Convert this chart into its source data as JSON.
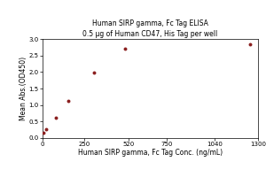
{
  "title_line1": "Human SIRP gamma, Fc Tag ELISA",
  "title_line2": "0.5 μg of Human CD47, His Tag per well",
  "xlabel": "Human SIRP gamma, Fc Tag Conc. (ng/mL)",
  "ylabel": "Mean Abs.(OD450)",
  "x_pts": [
    5,
    20,
    78,
    156,
    312,
    500,
    1250
  ],
  "y_pts": [
    0.15,
    0.27,
    0.62,
    1.12,
    1.97,
    2.7,
    2.85
  ],
  "xlim": [
    0,
    1300
  ],
  "ylim": [
    0.0,
    3.0
  ],
  "xticks": [
    0,
    250,
    520,
    750,
    1040,
    1300
  ],
  "yticks": [
    0.0,
    0.5,
    1.0,
    1.5,
    2.0,
    2.5,
    3.0
  ],
  "line_color": "#8B2020",
  "dot_color": "#8B2020",
  "bg_color": "#FFFFFF",
  "title_fontsize": 5.5,
  "subtitle_fontsize": 5.0,
  "axis_label_fontsize": 5.5,
  "tick_fontsize": 5.0
}
